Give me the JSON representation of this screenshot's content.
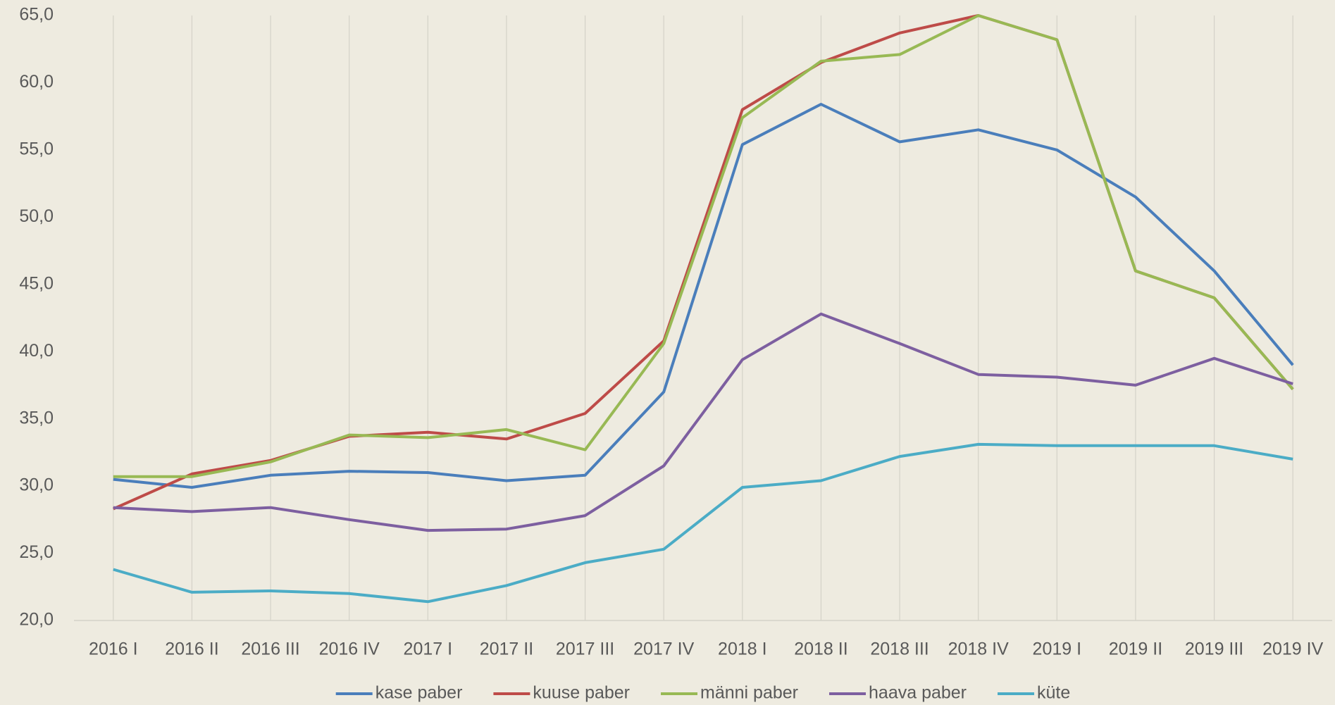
{
  "chart_data": {
    "type": "line",
    "categories": [
      "2016 I",
      "2016 II",
      "2016 III",
      "2016 IV",
      "2017 I",
      "2017 II",
      "2017 III",
      "2017 IV",
      "2018 I",
      "2018 II",
      "2018 III",
      "2018 IV",
      "2019 I",
      "2019 II",
      "2019 III",
      "2019 IV"
    ],
    "series": [
      {
        "name": "kase paber",
        "color": "#4a7ebb",
        "values": [
          30.5,
          29.9,
          30.8,
          31.1,
          31.0,
          30.4,
          30.8,
          37.0,
          55.4,
          58.4,
          55.6,
          56.5,
          55.0,
          51.5,
          46.0,
          39.0
        ]
      },
      {
        "name": "kuuse paber",
        "color": "#be4b48",
        "values": [
          28.3,
          30.9,
          31.9,
          33.7,
          34.0,
          33.5,
          35.4,
          40.8,
          58.0,
          61.5,
          63.7,
          65.0,
          63.2,
          46.0,
          44.0,
          37.2
        ]
      },
      {
        "name": "männi paber",
        "color": "#98b954",
        "values": [
          30.7,
          30.7,
          31.8,
          33.8,
          33.6,
          34.2,
          32.7,
          40.6,
          57.4,
          61.6,
          62.1,
          65.0,
          63.2,
          46.0,
          44.0,
          37.2
        ]
      },
      {
        "name": "haava paber",
        "color": "#7d5fa0",
        "values": [
          28.4,
          28.1,
          28.4,
          27.5,
          26.7,
          26.8,
          27.8,
          31.5,
          39.4,
          42.8,
          40.6,
          38.3,
          38.1,
          37.5,
          39.5,
          37.6
        ]
      },
      {
        "name": "küte",
        "color": "#4bacc6",
        "values": [
          23.8,
          22.1,
          22.2,
          22.0,
          21.4,
          22.6,
          24.3,
          25.3,
          29.9,
          30.4,
          32.2,
          33.1,
          33.0,
          33.0,
          33.0,
          32.0
        ]
      }
    ],
    "ylim": [
      20,
      65
    ],
    "yticks": [
      {
        "value": 20,
        "label": "20,0"
      },
      {
        "value": 25,
        "label": "25,0"
      },
      {
        "value": 30,
        "label": "30,0"
      },
      {
        "value": 35,
        "label": "35,0"
      },
      {
        "value": 40,
        "label": "40,0"
      },
      {
        "value": 45,
        "label": "45,0"
      },
      {
        "value": 50,
        "label": "50,0"
      },
      {
        "value": 55,
        "label": "55,0"
      },
      {
        "value": 60,
        "label": "60,0"
      },
      {
        "value": 65,
        "label": "65,0"
      }
    ],
    "xgrid": true,
    "legend": "bottom"
  }
}
